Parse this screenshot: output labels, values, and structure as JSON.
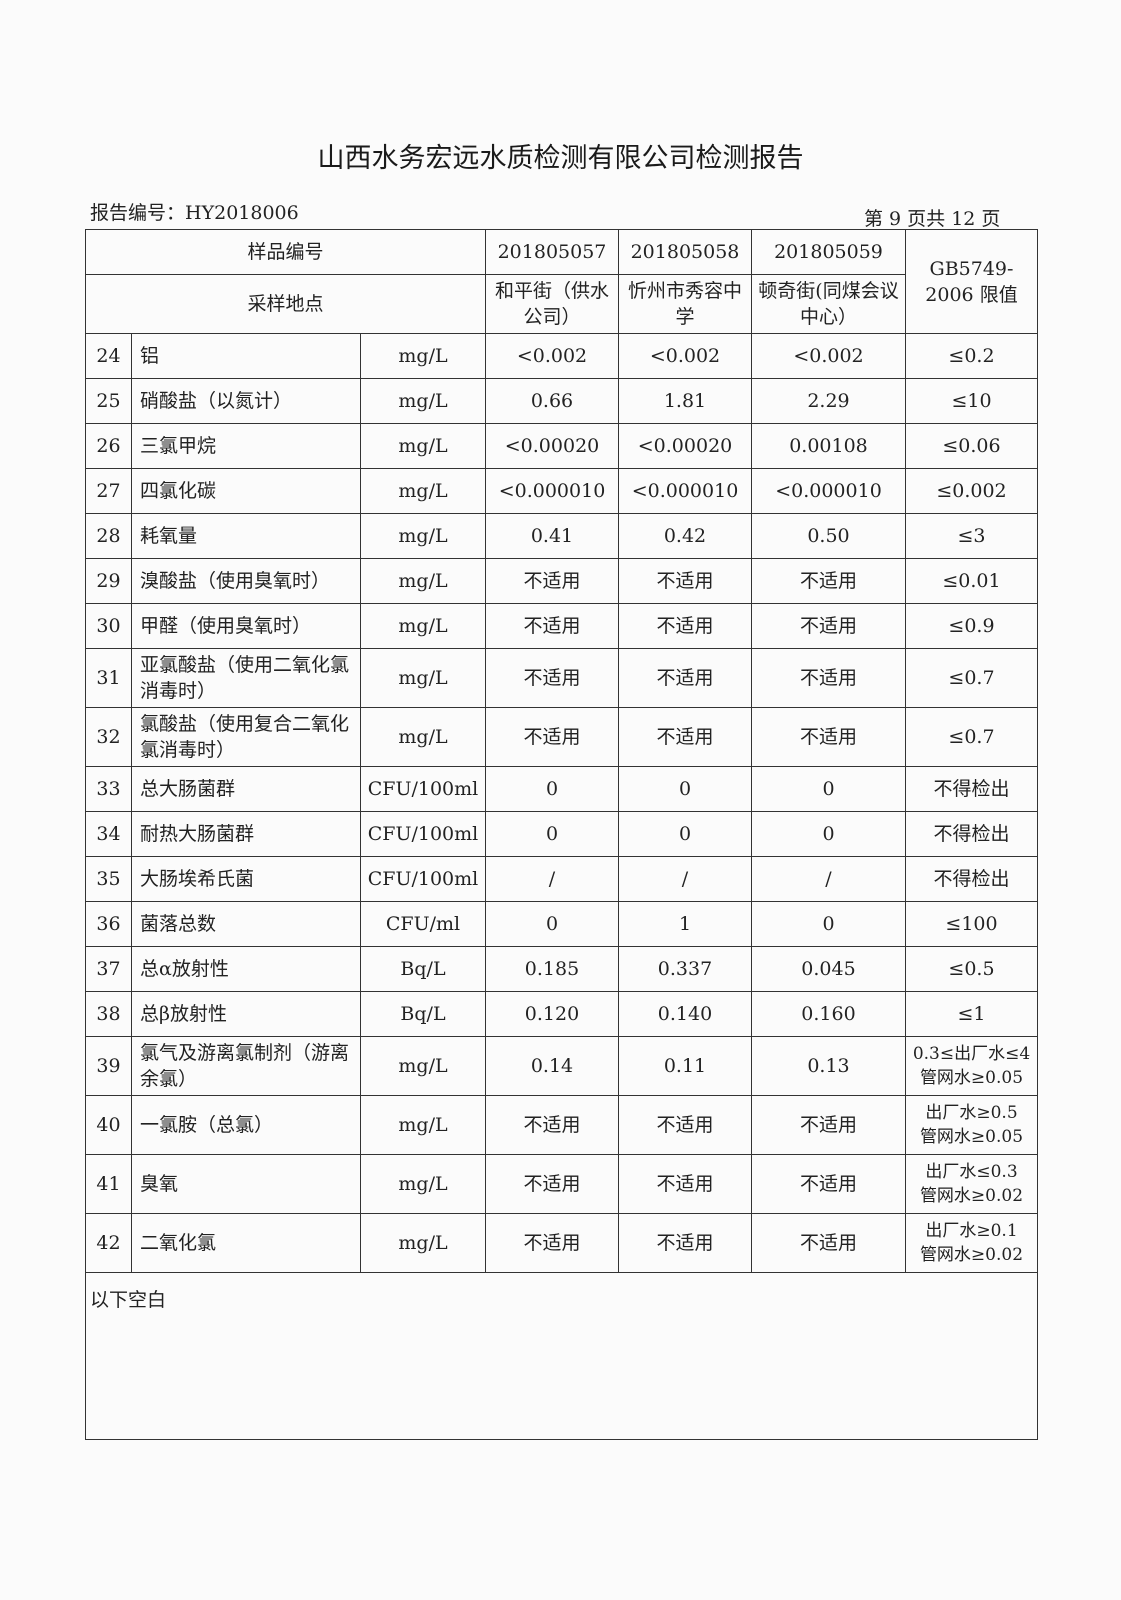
{
  "title": "山西水务宏远水质检测有限公司检测报告",
  "report_no": "报告编号：HY2018006",
  "page_info": "第 9 页共 12 页",
  "header": {
    "sample_no_label": "样品编号",
    "location_label": "采样地点",
    "samples": [
      "201805057",
      "201805058",
      "201805059"
    ],
    "locations": [
      "和平街（供水公司）",
      "忻州市秀容中学",
      "顿奇街(同煤会议中心）"
    ],
    "limit_label": "GB5749-2006 限值"
  },
  "rows": [
    {
      "no": "24",
      "name": "铝",
      "unit": "mg/L",
      "v": [
        "<0.002",
        "<0.002",
        "<0.002"
      ],
      "limit": "≤0.2"
    },
    {
      "no": "25",
      "name": "硝酸盐（以氮计）",
      "unit": "mg/L",
      "v": [
        "0.66",
        "1.81",
        "2.29"
      ],
      "limit": "≤10"
    },
    {
      "no": "26",
      "name": "三氯甲烷",
      "unit": "mg/L",
      "v": [
        "<0.00020",
        "<0.00020",
        "0.00108"
      ],
      "limit": "≤0.06"
    },
    {
      "no": "27",
      "name": "四氯化碳",
      "unit": "mg/L",
      "v": [
        "<0.000010",
        "<0.000010",
        "<0.000010"
      ],
      "limit": "≤0.002"
    },
    {
      "no": "28",
      "name": "耗氧量",
      "unit": "mg/L",
      "v": [
        "0.41",
        "0.42",
        "0.50"
      ],
      "limit": "≤3"
    },
    {
      "no": "29",
      "name": "溴酸盐（使用臭氧时）",
      "unit": "mg/L",
      "v": [
        "不适用",
        "不适用",
        "不适用"
      ],
      "limit": "≤0.01"
    },
    {
      "no": "30",
      "name": "甲醛（使用臭氧时）",
      "unit": "mg/L",
      "v": [
        "不适用",
        "不适用",
        "不适用"
      ],
      "limit": "≤0.9"
    },
    {
      "no": "31",
      "name": "亚氯酸盐（使用二氧化氯消毒时）",
      "unit": "mg/L",
      "v": [
        "不适用",
        "不适用",
        "不适用"
      ],
      "limit": "≤0.7",
      "tall": true
    },
    {
      "no": "32",
      "name": "氯酸盐（使用复合二氧化氯消毒时）",
      "unit": "mg/L",
      "v": [
        "不适用",
        "不适用",
        "不适用"
      ],
      "limit": "≤0.7",
      "tall": true
    },
    {
      "no": "33",
      "name": "总大肠菌群",
      "unit": "CFU/100ml",
      "v": [
        "0",
        "0",
        "0"
      ],
      "limit": "不得检出"
    },
    {
      "no": "34",
      "name": "耐热大肠菌群",
      "unit": "CFU/100ml",
      "v": [
        "0",
        "0",
        "0"
      ],
      "limit": "不得检出"
    },
    {
      "no": "35",
      "name": "大肠埃希氏菌",
      "unit": "CFU/100ml",
      "v": [
        "/",
        "/",
        "/"
      ],
      "limit": "不得检出"
    },
    {
      "no": "36",
      "name": "菌落总数",
      "unit": "CFU/ml",
      "v": [
        "0",
        "1",
        "0"
      ],
      "limit": "≤100"
    },
    {
      "no": "37",
      "name": "总α放射性",
      "unit": "Bq/L",
      "v": [
        "0.185",
        "0.337",
        "0.045"
      ],
      "limit": "≤0.5"
    },
    {
      "no": "38",
      "name": "总β放射性",
      "unit": "Bq/L",
      "v": [
        "0.120",
        "0.140",
        "0.160"
      ],
      "limit": "≤1"
    },
    {
      "no": "39",
      "name": "氯气及游离氯制剂（游离余氯）",
      "unit": "mg/L",
      "v": [
        "0.14",
        "0.11",
        "0.13"
      ],
      "limit": [
        "0.3≤出厂水≤4",
        "管网水≥0.05"
      ],
      "tall": true
    },
    {
      "no": "40",
      "name": "一氯胺（总氯）",
      "unit": "mg/L",
      "v": [
        "不适用",
        "不适用",
        "不适用"
      ],
      "limit": [
        "出厂水≥0.5",
        "管网水≥0.05"
      ],
      "tall": true
    },
    {
      "no": "41",
      "name": "臭氧",
      "unit": "mg/L",
      "v": [
        "不适用",
        "不适用",
        "不适用"
      ],
      "limit": [
        "出厂水≤0.3",
        "管网水≥0.02"
      ],
      "tall": true
    },
    {
      "no": "42",
      "name": "二氧化氯",
      "unit": "mg/L",
      "v": [
        "不适用",
        "不适用",
        "不适用"
      ],
      "limit": [
        "出厂水≥0.1",
        "管网水≥0.02"
      ],
      "tall": true
    }
  ],
  "footer_note": "以下空白"
}
